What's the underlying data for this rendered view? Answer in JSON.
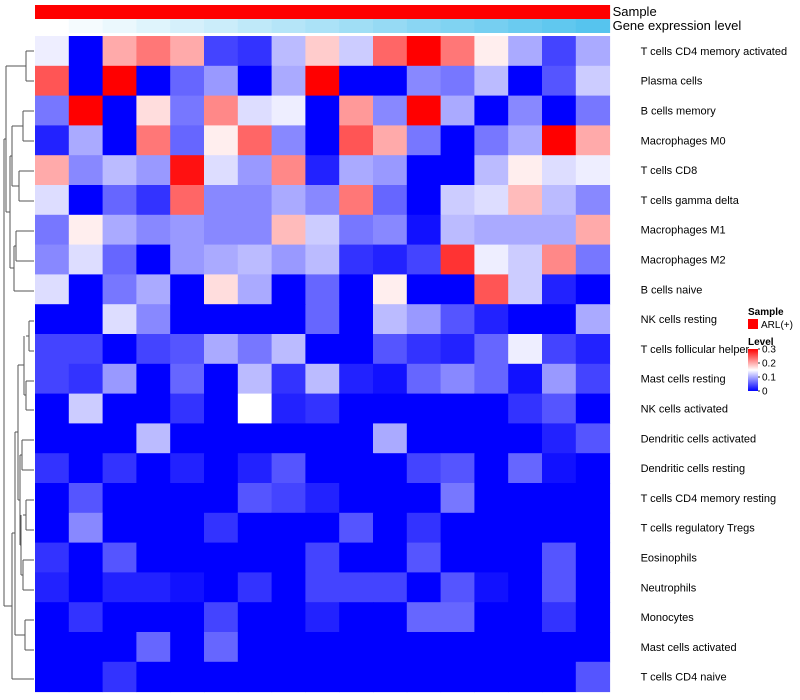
{
  "chart_data": {
    "type": "heatmap",
    "annotation_labels": [
      "Sample",
      "Gene expression level"
    ],
    "rows": [
      "T cells CD4 memory activated",
      "Plasma cells",
      "B cells memory",
      "Macrophages M0",
      "T cells CD8",
      "T cells gamma delta",
      "Macrophages M1",
      "Macrophages M2",
      "B cells naive",
      "NK cells resting",
      "T cells follicular helper",
      "Mast cells resting",
      "NK cells activated",
      "Dendritic cells activated",
      "Dendritic cells resting",
      "T cells CD4 memory resting",
      "T cells regulatory  Tregs",
      "Eosinophils",
      "Neutrophils",
      "Monocytes",
      "Mast cells activated",
      "T cells CD4 naive"
    ],
    "values": [
      [
        0.14,
        0.0,
        0.2,
        0.23,
        0.2,
        0.04,
        0.03,
        0.11,
        0.18,
        0.12,
        0.24,
        0.3,
        0.23,
        0.16,
        0.1,
        0.04,
        0.1
      ],
      [
        0.25,
        0.0,
        0.3,
        0.0,
        0.06,
        0.09,
        0.0,
        0.1,
        0.3,
        0.0,
        0.0,
        0.08,
        0.07,
        0.11,
        0.0,
        0.05,
        0.12
      ],
      [
        0.07,
        0.3,
        0.0,
        0.17,
        0.07,
        0.22,
        0.13,
        0.14,
        0.0,
        0.21,
        0.08,
        0.3,
        0.1,
        0.0,
        0.08,
        0.0,
        0.07
      ],
      [
        0.02,
        0.1,
        0.0,
        0.23,
        0.06,
        0.16,
        0.24,
        0.08,
        0.0,
        0.25,
        0.2,
        0.07,
        0.0,
        0.07,
        0.1,
        0.3,
        0.2
      ],
      [
        0.2,
        0.08,
        0.11,
        0.09,
        0.29,
        0.13,
        0.09,
        0.22,
        0.02,
        0.1,
        0.09,
        0.0,
        0.0,
        0.11,
        0.16,
        0.13,
        0.14
      ],
      [
        0.13,
        0.0,
        0.06,
        0.03,
        0.24,
        0.08,
        0.08,
        0.1,
        0.08,
        0.23,
        0.06,
        0.0,
        0.12,
        0.13,
        0.19,
        0.11,
        0.08
      ],
      [
        0.07,
        0.16,
        0.1,
        0.08,
        0.09,
        0.08,
        0.08,
        0.19,
        0.12,
        0.07,
        0.08,
        0.01,
        0.11,
        0.1,
        0.1,
        0.1,
        0.2
      ],
      [
        0.08,
        0.13,
        0.06,
        0.0,
        0.09,
        0.1,
        0.11,
        0.09,
        0.11,
        0.03,
        0.02,
        0.04,
        0.27,
        0.14,
        0.12,
        0.22,
        0.07
      ],
      [
        0.13,
        0.0,
        0.07,
        0.1,
        0.0,
        0.17,
        0.1,
        0.0,
        0.06,
        0.0,
        0.16,
        0.0,
        0.0,
        0.25,
        0.12,
        0.02,
        0.0
      ],
      [
        0.0,
        0.0,
        0.13,
        0.08,
        0.0,
        0.0,
        0.0,
        0.0,
        0.06,
        0.0,
        0.11,
        0.09,
        0.05,
        0.02,
        0.0,
        0.0,
        0.1
      ],
      [
        0.04,
        0.04,
        0.0,
        0.04,
        0.05,
        0.1,
        0.07,
        0.11,
        0.0,
        0.0,
        0.05,
        0.03,
        0.02,
        0.06,
        0.14,
        0.04,
        0.02
      ],
      [
        0.04,
        0.03,
        0.09,
        0.0,
        0.06,
        0.0,
        0.11,
        0.03,
        0.11,
        0.02,
        0.01,
        0.06,
        0.08,
        0.06,
        0.01,
        0.09,
        0.04
      ],
      [
        0.0,
        0.12,
        0.0,
        0.0,
        0.03,
        0.0,
        0.15,
        0.02,
        0.03,
        0.0,
        0.0,
        0.0,
        0.0,
        0.0,
        0.03,
        0.05,
        0.0
      ],
      [
        0.0,
        0.0,
        0.0,
        0.11,
        0.0,
        0.0,
        0.0,
        0.0,
        0.0,
        0.0,
        0.1,
        0.0,
        0.0,
        0.0,
        0.0,
        0.02,
        0.05
      ],
      [
        0.03,
        0.0,
        0.03,
        0.0,
        0.02,
        0.0,
        0.02,
        0.05,
        0.0,
        0.0,
        0.0,
        0.04,
        0.05,
        0.0,
        0.06,
        0.01,
        0.0
      ],
      [
        0.0,
        0.05,
        0.0,
        0.0,
        0.0,
        0.0,
        0.05,
        0.04,
        0.02,
        0.0,
        0.0,
        0.0,
        0.07,
        0.0,
        0.0,
        0.0,
        0.0
      ],
      [
        0.0,
        0.08,
        0.0,
        0.0,
        0.0,
        0.03,
        0.0,
        0.0,
        0.0,
        0.05,
        0.0,
        0.03,
        0.0,
        0.0,
        0.0,
        0.0,
        0.0
      ],
      [
        0.03,
        0.0,
        0.05,
        0.0,
        0.0,
        0.0,
        0.0,
        0.0,
        0.04,
        0.0,
        0.0,
        0.05,
        0.0,
        0.0,
        0.0,
        0.05,
        0.0
      ],
      [
        0.02,
        0.0,
        0.02,
        0.02,
        0.01,
        0.0,
        0.03,
        0.0,
        0.04,
        0.04,
        0.04,
        0.0,
        0.05,
        0.01,
        0.0,
        0.05,
        0.0
      ],
      [
        0.0,
        0.03,
        0.0,
        0.0,
        0.0,
        0.04,
        0.0,
        0.0,
        0.02,
        0.0,
        0.0,
        0.06,
        0.06,
        0.0,
        0.0,
        0.03,
        0.0
      ],
      [
        0.0,
        0.0,
        0.0,
        0.06,
        0.0,
        0.06,
        0.0,
        0.0,
        0.0,
        0.0,
        0.0,
        0.0,
        0.0,
        0.0,
        0.0,
        0.0,
        0.0
      ],
      [
        0.0,
        0.0,
        0.03,
        0.0,
        0.0,
        0.0,
        0.0,
        0.0,
        0.0,
        0.0,
        0.0,
        0.0,
        0.0,
        0.0,
        0.0,
        0.0,
        0.05
      ]
    ],
    "sample_annotation": {
      "values": [
        "ARL(+)",
        "ARL(+)",
        "ARL(+)",
        "ARL(+)",
        "ARL(+)",
        "ARL(+)",
        "ARL(+)",
        "ARL(+)",
        "ARL(+)",
        "ARL(+)",
        "ARL(+)",
        "ARL(+)",
        "ARL(+)",
        "ARL(+)",
        "ARL(+)",
        "ARL(+)",
        "ARL(+)"
      ],
      "color": "#ff0000"
    },
    "expression_annotation": {
      "values": [
        0.0,
        0.06,
        0.12,
        0.19,
        0.25,
        0.31,
        0.38,
        0.44,
        0.5,
        0.56,
        0.62,
        0.69,
        0.75,
        0.81,
        0.88,
        0.94,
        1.0
      ],
      "low_color": "#ffffff",
      "high_color": "#56c4ee"
    },
    "color_scale": {
      "min": 0,
      "mid": 0.15,
      "max": 0.3,
      "low": "#0000ff",
      "mid_color": "#ffffff",
      "high": "#ff0000"
    },
    "legend": {
      "sample_title": "Sample",
      "sample_entry": "ARL(+)",
      "level_title": "Level",
      "ticks": [
        {
          "value": 0.3,
          "label": "0.3"
        },
        {
          "value": 0.2,
          "label": "0.2"
        },
        {
          "value": 0.1,
          "label": "0.1"
        },
        {
          "value": 0,
          "label": "0"
        }
      ]
    },
    "dendrogram": "left"
  }
}
